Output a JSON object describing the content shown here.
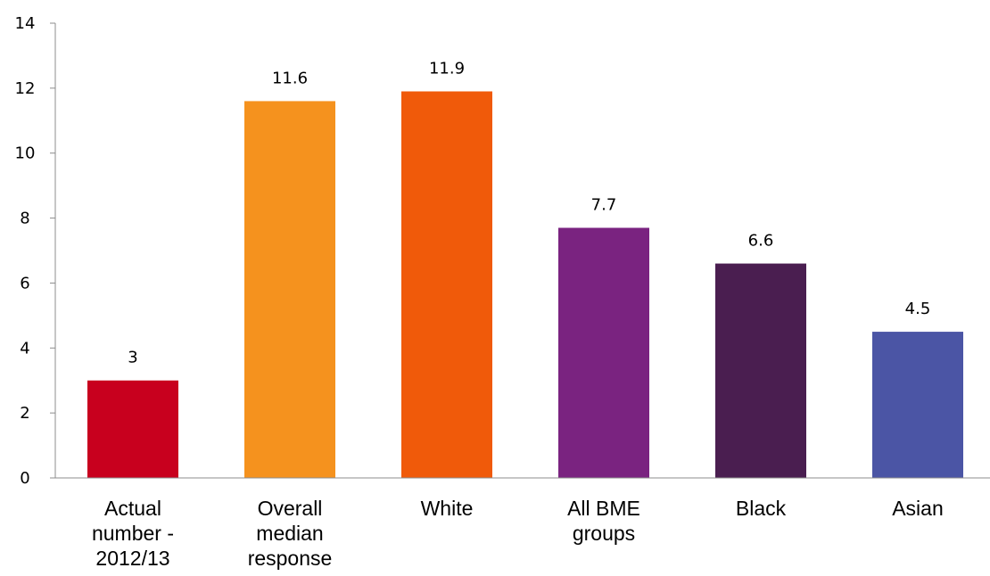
{
  "chart_data": {
    "type": "bar",
    "categories": [
      [
        "Actual",
        "number -",
        "2012/13"
      ],
      [
        "Overall",
        "median",
        "response"
      ],
      [
        "White"
      ],
      [
        "All BME",
        "groups"
      ],
      [
        "Black"
      ],
      [
        "Asian"
      ]
    ],
    "values": [
      3,
      11.6,
      11.9,
      7.7,
      6.6,
      4.5
    ],
    "value_labels": [
      "3",
      "11.6",
      "11.9",
      "7.7",
      "6.6",
      "4.5"
    ],
    "bar_colors": [
      "#c8001e",
      "#f5921e",
      "#f05a0a",
      "#7a2380",
      "#4a1e50",
      "#4b55a5"
    ],
    "ylim": [
      0,
      14
    ],
    "yticks": [
      "0",
      "2",
      "4",
      "6",
      "8",
      "10",
      "12",
      "14"
    ],
    "title": "",
    "xlabel": "",
    "ylabel": "",
    "grid": false,
    "legend": "none"
  }
}
